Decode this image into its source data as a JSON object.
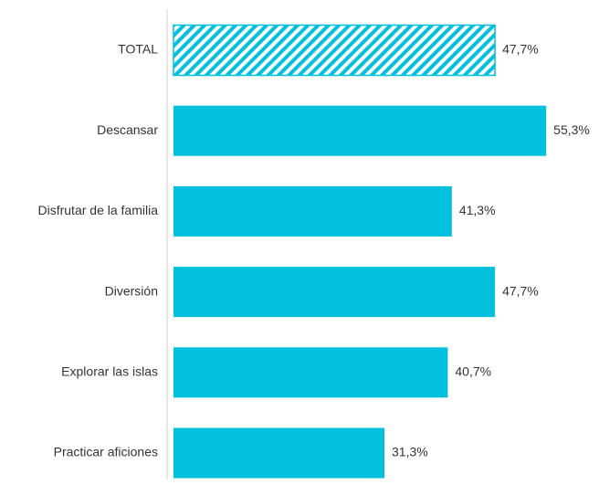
{
  "chart_data": {
    "type": "hbar",
    "categories": [
      "TOTAL",
      "Descansar",
      "Disfrutar de la familia",
      "Diversión",
      "Explorar las islas",
      "Practicar aficiones"
    ],
    "values": [
      47.7,
      55.3,
      41.3,
      47.7,
      40.7,
      31.3
    ],
    "value_labels": [
      "47,7%",
      "55,3%",
      "41,3%",
      "47,7%",
      "40,7%",
      "31,3%"
    ],
    "hatch": [
      true,
      false,
      false,
      false,
      false,
      false
    ],
    "color": "#00c0de",
    "xlim": [
      0,
      63
    ]
  }
}
